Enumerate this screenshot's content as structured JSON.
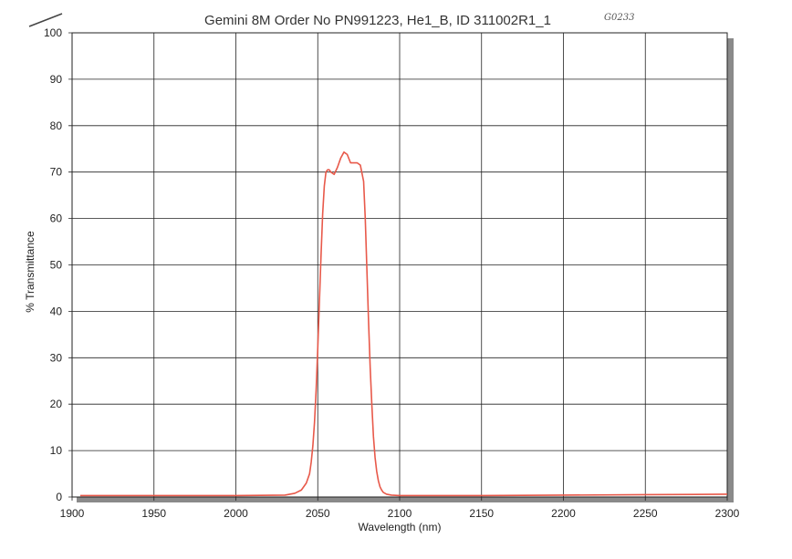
{
  "handwritten_note": "G0233",
  "chart_data": {
    "type": "line",
    "title": "Gemini 8M Order No PN991223, He1_B, ID 311002R1_1",
    "xlabel": "Wavelength (nm)",
    "ylabel": "% Transmittance",
    "xlim": [
      1900,
      2300
    ],
    "ylim": [
      0,
      100
    ],
    "xticks": [
      1900,
      1950,
      2000,
      2050,
      2100,
      2150,
      2200,
      2250,
      2300
    ],
    "yticks": [
      0,
      10,
      20,
      30,
      40,
      50,
      60,
      70,
      80,
      90,
      100
    ],
    "grid": true,
    "colors": {
      "line": "#e8594a",
      "grid": "#222222",
      "shadow": "#8a8a8a"
    },
    "series": [
      {
        "x": [
          1905,
          1950,
          2000,
          2030,
          2036,
          2040,
          2043,
          2045,
          2046,
          2047,
          2048,
          2049,
          2050,
          2051,
          2052,
          2053,
          2054,
          2055,
          2056,
          2057,
          2058,
          2060,
          2062,
          2064,
          2066,
          2068,
          2070,
          2072,
          2074,
          2076,
          2078,
          2079,
          2080,
          2081,
          2082,
          2083,
          2084,
          2085,
          2086,
          2087,
          2088,
          2089,
          2090,
          2092,
          2095,
          2100,
          2150,
          2200,
          2250,
          2300
        ],
        "y": [
          0.3,
          0.3,
          0.3,
          0.4,
          0.8,
          1.5,
          3.0,
          5.0,
          7.5,
          11,
          16,
          23,
          32,
          42,
          52,
          61,
          67,
          70,
          70.5,
          70.5,
          70,
          69.5,
          71,
          73,
          74.3,
          73.8,
          72,
          72,
          72,
          71.5,
          68,
          60,
          49,
          38,
          28,
          20,
          13,
          8.5,
          5.5,
          3.5,
          2.2,
          1.5,
          1.0,
          0.6,
          0.4,
          0.3,
          0.3,
          0.4,
          0.5,
          0.6
        ]
      }
    ]
  }
}
